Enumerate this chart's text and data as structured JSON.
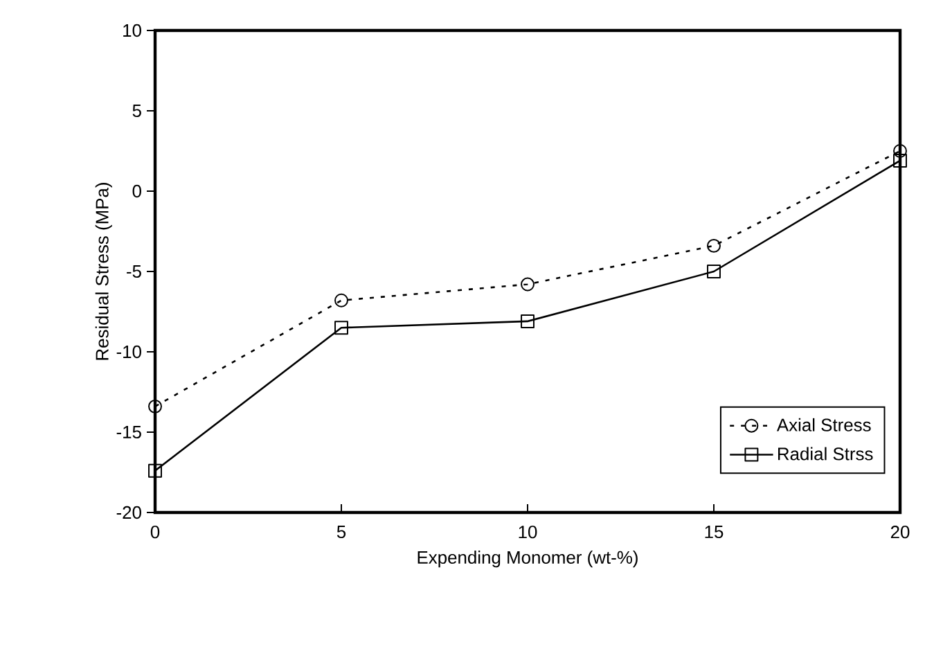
{
  "chart_data": {
    "type": "line",
    "xlabel": "Expending Monomer (wt-%)",
    "ylabel": "Residual Stress (MPa)",
    "x": [
      0,
      5,
      10,
      15,
      20
    ],
    "series": [
      {
        "name": "Axial Stress",
        "color": "#000000",
        "values": [
          -13.4,
          -6.8,
          -5.8,
          -3.4,
          2.5
        ],
        "marker": "circle",
        "line_style": "dotted"
      },
      {
        "name": "Radial Strss",
        "color": "#000000",
        "values": [
          -17.4,
          -8.5,
          -8.1,
          -5.0,
          1.9
        ],
        "marker": "square",
        "line_style": "solid"
      }
    ],
    "xlim": [
      0,
      20
    ],
    "xticks": [
      0,
      5,
      10,
      15,
      20
    ],
    "ylim": [
      -20,
      10
    ],
    "yticks": [
      -20,
      -15,
      -10,
      -5,
      0,
      5,
      10
    ],
    "grid": false,
    "legend": "bottom right"
  }
}
